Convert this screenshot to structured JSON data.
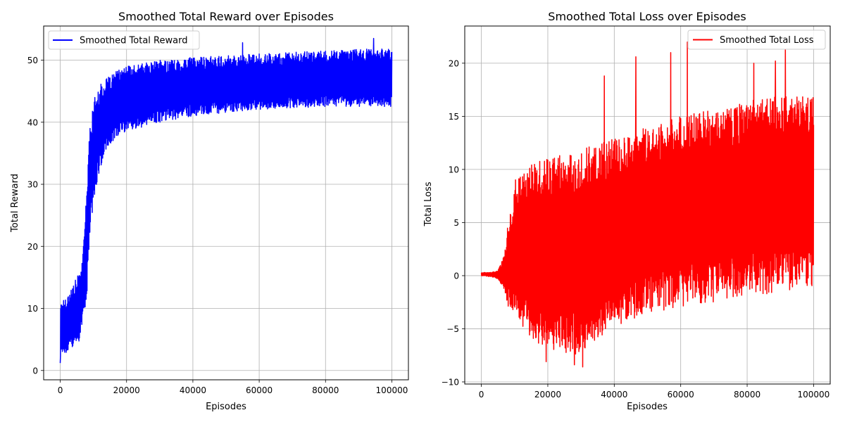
{
  "chart_data": [
    {
      "type": "line",
      "title": "Smoothed Total Reward over Episodes",
      "xlabel": "Episodes",
      "ylabel": "Total Reward",
      "xlim": [
        -5000,
        105000
      ],
      "ylim": [
        -1.5,
        55.5
      ],
      "xticks": [
        0,
        20000,
        40000,
        60000,
        80000,
        100000
      ],
      "yticks": [
        0,
        10,
        20,
        30,
        40,
        50
      ],
      "xtick_labels": [
        "0",
        "20000",
        "40000",
        "60000",
        "80000",
        "100000"
      ],
      "ytick_labels": [
        "0",
        "10",
        "20",
        "30",
        "40",
        "50"
      ],
      "grid": true,
      "legend": "top-left",
      "series": [
        {
          "name": "Smoothed Total Reward",
          "color": "#0000ff",
          "envelope": {
            "x": [
              0,
              2000,
              4000,
              6000,
              7000,
              8000,
              9000,
              10000,
              11000,
              12000,
              14000,
              16000,
              20000,
              30000,
              40000,
              60000,
              80000,
              100000
            ],
            "lower": [
              2,
              2.5,
              3.5,
              5,
              8,
              12,
              22,
              27,
              30,
              32,
              36,
              37,
              38.5,
              40,
              41,
              42,
              42.5,
              42.5
            ],
            "upper": [
              11,
              12,
              14,
              16,
              20,
              30,
              40,
              43,
              45.5,
              46,
              47,
              48,
              49,
              50,
              50.5,
              51,
              51.5,
              52
            ]
          },
          "peaks": [
            {
              "x": 94500,
              "y": 53.5
            },
            {
              "x": 55000,
              "y": 52.8
            },
            {
              "x": 0,
              "y": 1.2
            }
          ]
        }
      ]
    },
    {
      "type": "line",
      "title": "Smoothed Total Loss over Episodes",
      "xlabel": "Episodes",
      "ylabel": "Total Loss",
      "xlim": [
        -5000,
        105000
      ],
      "ylim": [
        -10.2,
        23.5
      ],
      "xticks": [
        0,
        20000,
        40000,
        60000,
        80000,
        100000
      ],
      "yticks": [
        -10,
        -5,
        0,
        5,
        10,
        15,
        20
      ],
      "xtick_labels": [
        "0",
        "20000",
        "40000",
        "60000",
        "80000",
        "100000"
      ],
      "ytick_labels": [
        "−10",
        "−5",
        "0",
        "5",
        "10",
        "15",
        "20"
      ],
      "grid": true,
      "legend": "top-right",
      "series": [
        {
          "name": "Smoothed Total Loss",
          "color": "#ff0000",
          "envelope": {
            "x": [
              0,
              3000,
              5000,
              7000,
              8000,
              9000,
              10000,
              12000,
              15000,
              20000,
              30000,
              40000,
              50000,
              60000,
              70000,
              80000,
              90000,
              100000
            ],
            "lower": [
              0,
              -0.1,
              -0.3,
              -1.5,
              -3,
              -3,
              -4,
              -5,
              -6,
              -7,
              -7.5,
              -5,
              -3.5,
              -3,
              -2.5,
              -2,
              -1.5,
              -1
            ],
            "upper": [
              0.3,
              0.3,
              0.5,
              2,
              5.5,
              6,
              9,
              10,
              10.5,
              11,
              12,
              13,
              14,
              15,
              16,
              16.5,
              17,
              17
            ]
          },
          "peaks": [
            {
              "x": 62000,
              "y": 22.0
            },
            {
              "x": 91500,
              "y": 21.3
            },
            {
              "x": 57000,
              "y": 21.0
            },
            {
              "x": 46500,
              "y": 20.6
            },
            {
              "x": 88500,
              "y": 20.2
            },
            {
              "x": 82000,
              "y": 20.0
            },
            {
              "x": 37000,
              "y": 18.8
            },
            {
              "x": 30500,
              "y": -8.6
            },
            {
              "x": 19500,
              "y": -8.1
            },
            {
              "x": 28000,
              "y": -8.4
            }
          ]
        }
      ]
    }
  ]
}
